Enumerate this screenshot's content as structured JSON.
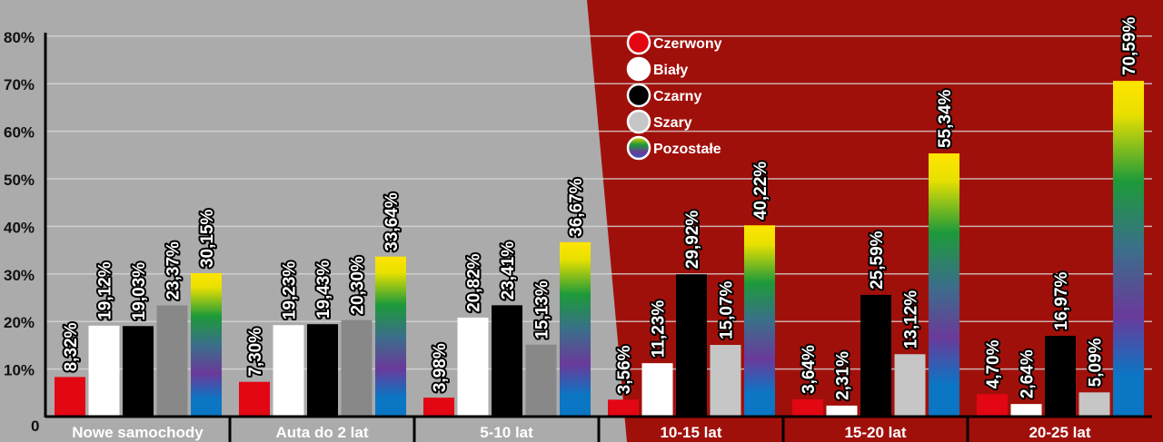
{
  "chart_data": {
    "type": "bar",
    "categories": [
      "Nowe samochody",
      "Auta do 2 lat",
      "5-10 lat",
      "10-15 lat",
      "15-20 lat",
      "20-25 lat"
    ],
    "series": [
      {
        "name": "Czerwony",
        "color": "#e30613",
        "values": [
          8.32,
          7.3,
          3.98,
          3.56,
          3.64,
          4.7
        ],
        "labels": [
          "8,32%",
          "7,30%",
          "3,98%",
          "3,56%",
          "3,64%",
          "4,70%"
        ]
      },
      {
        "name": "Biały",
        "color": "#ffffff",
        "values": [
          19.12,
          19.23,
          20.82,
          11.23,
          2.31,
          2.64
        ],
        "labels": [
          "19,12%",
          "19,23%",
          "20,82%",
          "11,23%",
          "2,31%",
          "2,64%"
        ]
      },
      {
        "name": "Czarny",
        "color": "#000000",
        "values": [
          19.03,
          19.43,
          23.41,
          29.92,
          25.59,
          16.97
        ],
        "labels": [
          "19,03%",
          "19,43%",
          "23,41%",
          "29,92%",
          "25,59%",
          "16,97%"
        ]
      },
      {
        "name": "Szary",
        "color": "#c6c6c6",
        "values": [
          23.37,
          20.3,
          15.13,
          15.07,
          13.12,
          5.09
        ],
        "labels": [
          "23,37%",
          "20,30%",
          "15,13%",
          "15,07%",
          "13,12%",
          "5,09%"
        ]
      },
      {
        "name": "Pozostałe",
        "color": "rainbow",
        "values": [
          30.15,
          33.64,
          36.67,
          40.22,
          55.34,
          70.59
        ],
        "labels": [
          "30,15%",
          "33,64%",
          "36,67%",
          "40,22%",
          "55,34%",
          "70,59%"
        ]
      }
    ],
    "yticks": [
      "0",
      "10%",
      "20%",
      "30%",
      "40%",
      "50%",
      "60%",
      "70%",
      "80%"
    ],
    "ylim": [
      0,
      80
    ],
    "grid": true,
    "legend": "top-center",
    "background_colors": {
      "left": "#ababab",
      "right": "#a0100b"
    }
  }
}
